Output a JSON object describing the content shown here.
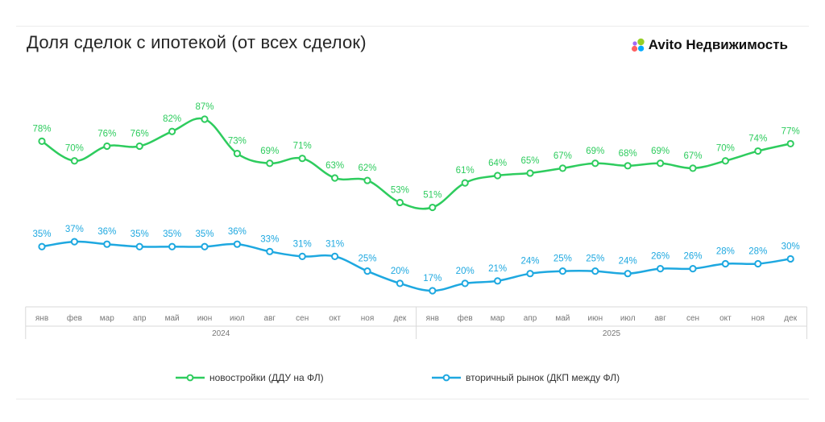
{
  "title": "Доля сделок с ипотекой (от всех сделок)",
  "brand": {
    "name": "Avito Недвижимость",
    "icon": "avito-dots-icon"
  },
  "colors": {
    "new": "#2ecc5e",
    "secondary": "#1ea8e0",
    "text": "#262626",
    "axis": "#d9d9d9"
  },
  "chart_data": {
    "type": "line",
    "title": "Доля сделок с ипотекой (от всех сделок)",
    "categories": [
      "янв",
      "фев",
      "мар",
      "апр",
      "май",
      "июн",
      "июл",
      "авг",
      "сен",
      "окт",
      "ноя",
      "дек",
      "янв",
      "фев",
      "мар",
      "апр",
      "май",
      "июн",
      "июл",
      "авг",
      "сен",
      "окт",
      "ноя",
      "дек"
    ],
    "years": [
      {
        "label": "2024",
        "from": 0,
        "to": 11
      },
      {
        "label": "2025",
        "from": 12,
        "to": 23
      }
    ],
    "series": [
      {
        "name": "новостройки (ДДУ на ФЛ)",
        "color": "#2ecc5e",
        "values": [
          78,
          70,
          76,
          76,
          82,
          87,
          73,
          69,
          71,
          63,
          62,
          53,
          51,
          61,
          64,
          65,
          67,
          69,
          68,
          69,
          67,
          70,
          74,
          77
        ],
        "labels": [
          "78%",
          "70%",
          "76%",
          "76%",
          "82%",
          "87%",
          "73%",
          "69%",
          "71%",
          "63%",
          "62%",
          "53%",
          "51%",
          "61%",
          "64%",
          "65%",
          "67%",
          "69%",
          "68%",
          "69%",
          "67%",
          "70%",
          "74%",
          "77%"
        ]
      },
      {
        "name": "вторичный рынок (ДКП между ФЛ)",
        "color": "#1ea8e0",
        "values": [
          35,
          37,
          36,
          35,
          35,
          35,
          36,
          33,
          31,
          31,
          25,
          20,
          17,
          20,
          21,
          24,
          25,
          25,
          24,
          26,
          26,
          28,
          28,
          30
        ],
        "labels": [
          "35%",
          "37%",
          "36%",
          "35%",
          "35%",
          "35%",
          "36%",
          "33%",
          "31%",
          "31%",
          "25%",
          "20%",
          "17%",
          "20%",
          "21%",
          "24%",
          "25%",
          "25%",
          "24%",
          "26%",
          "26%",
          "28%",
          "28%",
          "30%"
        ]
      }
    ],
    "xlabel": "",
    "ylabel": "",
    "legend": "bottom-center",
    "grid": false
  }
}
